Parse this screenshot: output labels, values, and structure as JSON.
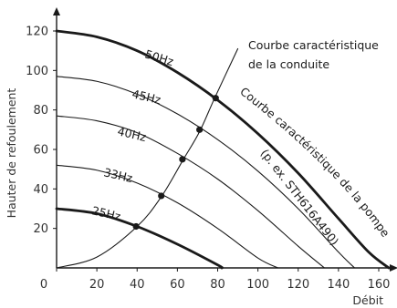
{
  "chart_data": {
    "type": "line",
    "title": "",
    "xlabel": "Débit",
    "ylabel": "Hauter de refoulement",
    "xlim": [
      0,
      170
    ],
    "ylim": [
      0,
      130
    ],
    "x_ticks": [
      0,
      20,
      40,
      60,
      80,
      100,
      120,
      140,
      160
    ],
    "y_ticks": [
      20,
      40,
      60,
      80,
      100,
      120
    ],
    "grid": false,
    "colors": {
      "curve": "#1a1a1a",
      "axis": "#1a1a1a",
      "text": "#333333"
    },
    "series": [
      {
        "name": "50Hz",
        "role": "pump",
        "x": [
          0,
          20,
          40,
          60,
          80,
          100,
          120,
          140,
          155,
          165
        ],
        "y": [
          120,
          117,
          110,
          99,
          85,
          68,
          48,
          25,
          8,
          0
        ]
      },
      {
        "name": "45Hz",
        "role": "pump",
        "x": [
          0,
          20,
          40,
          60,
          80,
          100,
          120,
          140,
          148
        ],
        "y": [
          97,
          94.5,
          88,
          78,
          65,
          49,
          30,
          8,
          0
        ]
      },
      {
        "name": "40Hz",
        "role": "pump",
        "x": [
          0,
          20,
          40,
          60,
          80,
          100,
          120,
          133
        ],
        "y": [
          77,
          74.5,
          68.5,
          58,
          45,
          29,
          11,
          0
        ]
      },
      {
        "name": "33Hz",
        "role": "pump",
        "x": [
          0,
          20,
          40,
          60,
          80,
          100,
          110
        ],
        "y": [
          52,
          49.5,
          43,
          33,
          20,
          5,
          0
        ]
      },
      {
        "name": "25Hz",
        "role": "pump",
        "x": [
          0,
          20,
          40,
          60,
          80,
          82
        ],
        "y": [
          30,
          27.5,
          21,
          12,
          1.5,
          0
        ]
      },
      {
        "name": "Courbe caractéristique de la conduite",
        "role": "system",
        "x": [
          0,
          20,
          40,
          52,
          63,
          71,
          78.5,
          90
        ],
        "y": [
          0,
          5.5,
          21,
          36,
          55,
          69,
          86,
          111
        ]
      }
    ],
    "operating_points": [
      {
        "x": 39.5,
        "y": 21
      },
      {
        "x": 52,
        "y": 36.5
      },
      {
        "x": 62.5,
        "y": 55
      },
      {
        "x": 71,
        "y": 70
      },
      {
        "x": 79,
        "y": 86
      }
    ],
    "annotations": {
      "conduite_line1": "Courbe caractéristique",
      "conduite_line2": "de la conduite",
      "pompe": "Courbe caractéristique de la pompe",
      "example": "(p. ex. STH616A490)"
    }
  }
}
